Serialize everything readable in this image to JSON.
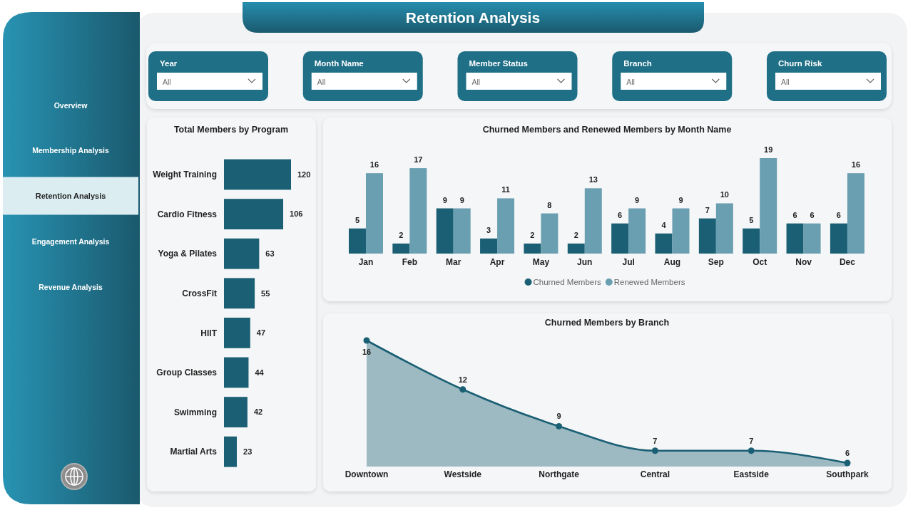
{
  "chart_data": [
    {
      "type": "other",
      "title": "Retention Analysis",
      "annotations": [
        "Overview",
        "Membership Analysis",
        "Retention Analysis",
        "Engagement Analysis",
        "Revenue Analysis"
      ]
    },
    {
      "type": "other",
      "annotations": [
        "Year",
        "All",
        "Month Name",
        "All",
        "Member Status",
        "All",
        "Branch",
        "All",
        "Churn Risk",
        "All"
      ]
    },
    {
      "type": "bar",
      "title": "Total Members by Program",
      "orientation": "horizontal",
      "categories": [
        "Weight Training",
        "Cardio Fitness",
        "Yoga & Pilates",
        "CrossFit",
        "HIIT",
        "Group Classes",
        "Swimming",
        "Martial Arts"
      ],
      "values": [
        120,
        106,
        63,
        55,
        47,
        44,
        42,
        23
      ],
      "color": "#1a5f74",
      "data_labels": true
    },
    {
      "type": "bar",
      "title": "Churned Members and Renewed Members by Month Name",
      "categories": [
        "Jan",
        "Feb",
        "Mar",
        "Apr",
        "May",
        "Jun",
        "Jul",
        "Aug",
        "Sep",
        "Oct",
        "Nov",
        "Dec"
      ],
      "series": [
        {
          "name": "Churned Members",
          "color": "#1a5f74",
          "values": [
            5,
            2,
            9,
            3,
            2,
            2,
            6,
            4,
            7,
            5,
            6,
            6
          ]
        },
        {
          "name": "Renewed Members",
          "color": "#699fb0",
          "values": [
            16,
            17,
            9,
            11,
            8,
            13,
            9,
            9,
            10,
            19,
            6,
            16
          ]
        }
      ],
      "data_labels": true,
      "legend": "bottom"
    },
    {
      "type": "area",
      "title": "Churned Members by Branch",
      "categories": [
        "Downtown",
        "Westside",
        "Northgate",
        "Central",
        "Eastside",
        "Southpark"
      ],
      "values": [
        16,
        12,
        9,
        7,
        7,
        6
      ],
      "color": "#1a5f74",
      "data_labels": true,
      "marker": "circle"
    }
  ]
}
